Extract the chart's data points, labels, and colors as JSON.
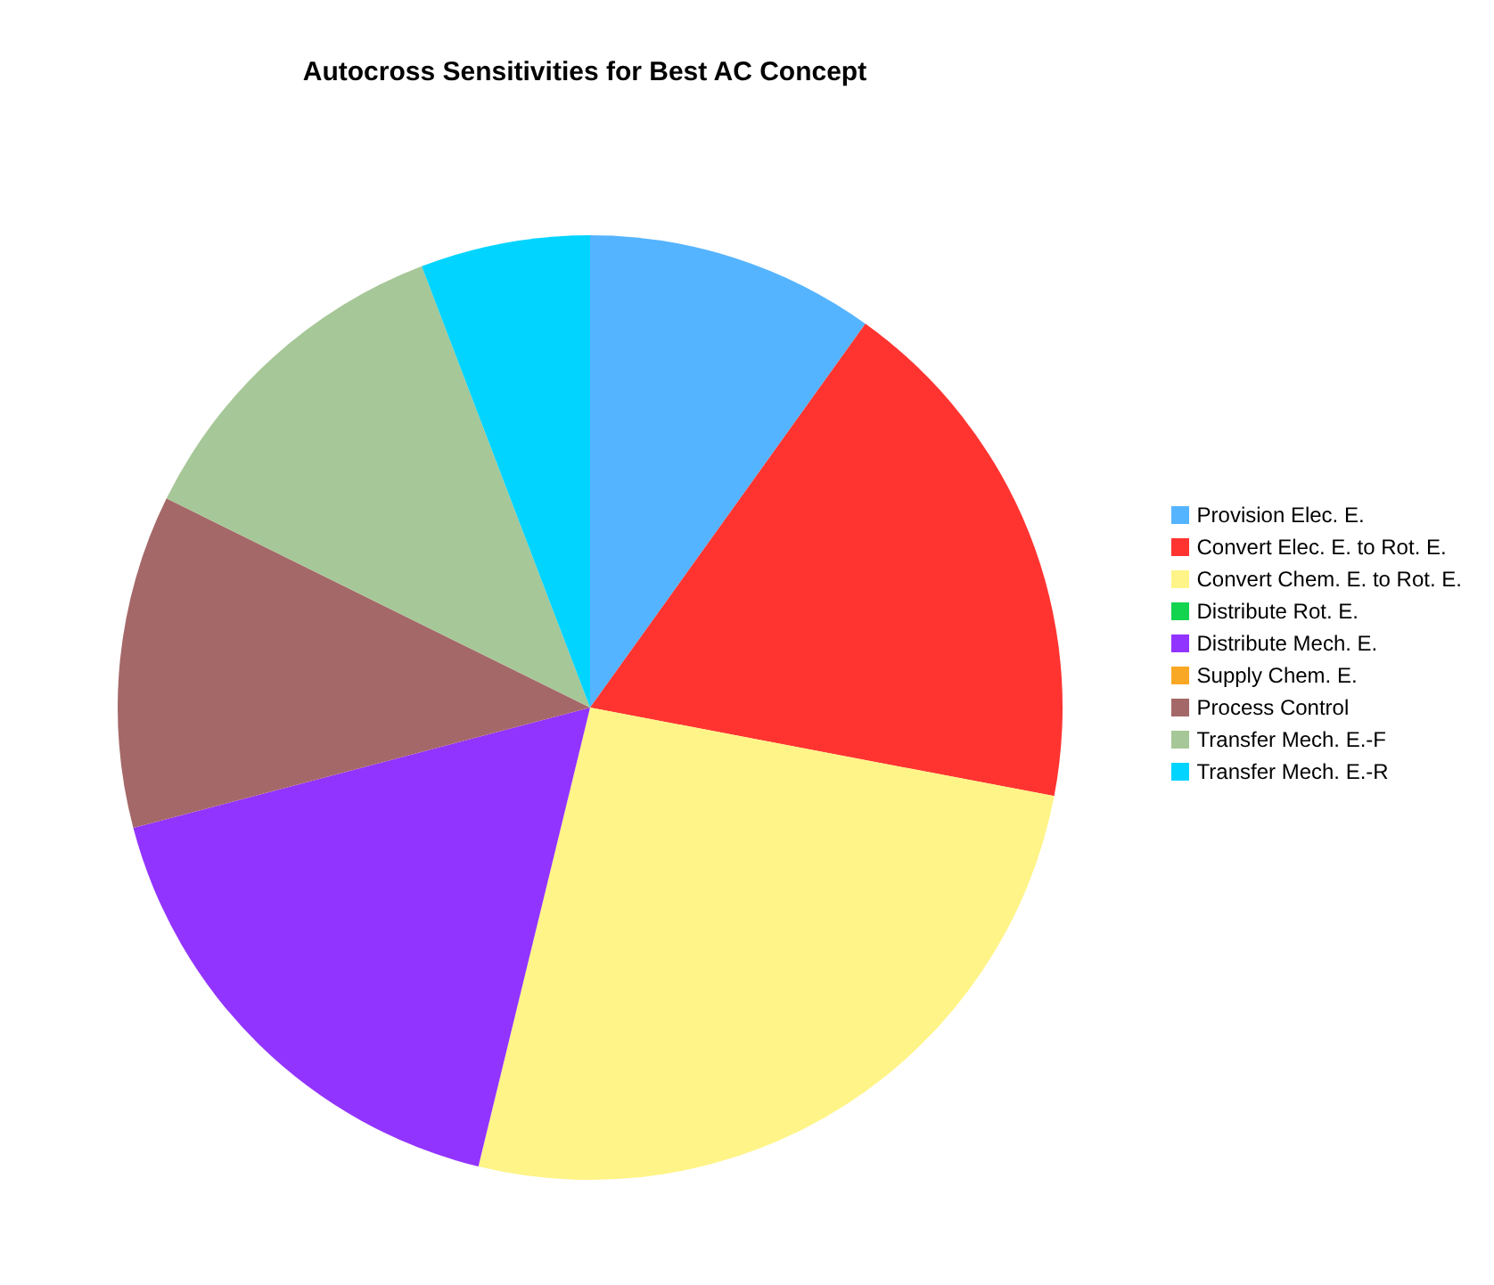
{
  "chart_data": {
    "type": "pie",
    "title": "Autocross Sensitivities for Best AC Concept",
    "categories": [
      "Provision Elec. E.",
      "Convert Elec. E. to Rot. E.",
      "Convert Chem. E. to Rot. E.",
      "Distribute Rot. E.",
      "Distribute Mech. E.",
      "Supply Chem. E.",
      "Process Control",
      "Transfer Mech. E.-F",
      "Transfer Mech. E.-R"
    ],
    "values": [
      9.9,
      18.1,
      25.8,
      0,
      17.1,
      0,
      11.4,
      11.9,
      5.8
    ],
    "colors": [
      "#55b4ff",
      "#ff3430",
      "#fff487",
      "#13d44f",
      "#9234ff",
      "#f9a825",
      "#a56868",
      "#a6c797",
      "#00d4ff"
    ],
    "legend": "right"
  }
}
